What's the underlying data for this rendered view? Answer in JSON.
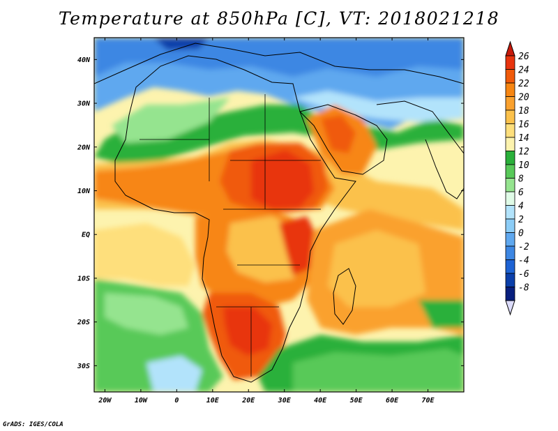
{
  "map": {
    "title": "Temperature at 850hPa [C], VT: 2018021218",
    "variable": "Temperature at 850hPa",
    "units": "C",
    "valid_time": "2018021218",
    "region": "Africa",
    "lon_range": [
      -23,
      80
    ],
    "lat_range": [
      -36,
      45
    ],
    "lon_ticks": [
      "20W",
      "10W",
      "0",
      "10E",
      "20E",
      "30E",
      "40E",
      "50E",
      "60E",
      "70E"
    ],
    "lat_ticks": [
      "40N",
      "30N",
      "20N",
      "10N",
      "EQ",
      "10S",
      "20S",
      "30S"
    ],
    "credit": "GrADS: IGES/COLA"
  },
  "colorbar": {
    "labels": [
      "26",
      "24",
      "22",
      "20",
      "18",
      "16",
      "14",
      "12",
      "10",
      "8",
      "6",
      "4",
      "2",
      "0",
      "-2",
      "-4",
      "-6",
      "-8"
    ],
    "colors": [
      "#e8340e",
      "#f05a0a",
      "#f78612",
      "#faa12e",
      "#fbc14b",
      "#fedf7c",
      "#fdf3ae",
      "#2ab03a",
      "#58c959",
      "#95e48f",
      "#e0fbe7",
      "#b2e3fb",
      "#8ccdf7",
      "#5fa8ef",
      "#3d87e3",
      "#1d63d4",
      "#0b3faa",
      "#081f7e"
    ],
    "top_color": "#c71a0b",
    "bottom_color": "#dcdcfb"
  }
}
